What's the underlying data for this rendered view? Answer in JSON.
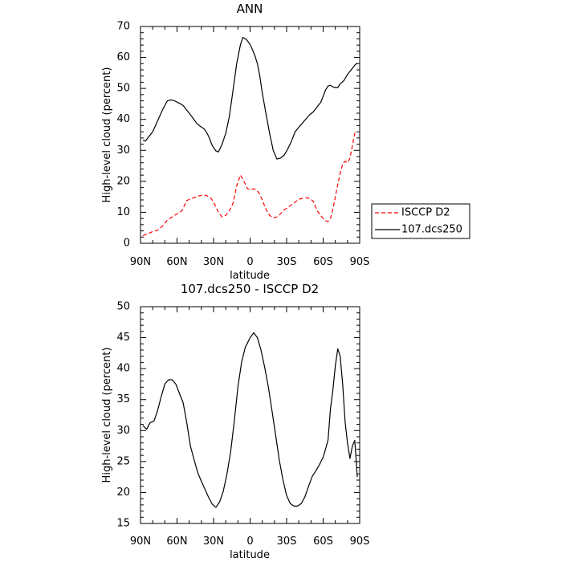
{
  "chart_data": [
    {
      "type": "line",
      "title": "ANN",
      "xlabel": "latitude",
      "ylabel": "High-level cloud (percent)",
      "xlim": [
        -90,
        90
      ],
      "ylim": [
        0,
        70
      ],
      "x_ticks": [
        -90,
        -60,
        -30,
        0,
        30,
        60,
        90
      ],
      "x_tick_labels": [
        "90N",
        "60N",
        "30N",
        "0",
        "30S",
        "60S",
        "90S"
      ],
      "y_ticks": [
        0,
        10,
        20,
        30,
        40,
        50,
        60,
        70
      ],
      "y_tick_labels": [
        "0",
        "10",
        "20",
        "30",
        "40",
        "50",
        "60",
        "70"
      ],
      "legend": "right",
      "series": [
        {
          "name": "ISCCP D2",
          "color": "#ff0000",
          "dash": "dashed",
          "x": [
            -88,
            -84,
            -80,
            -76,
            -72,
            -68,
            -64,
            -60,
            -56,
            -52,
            -48,
            -44,
            -40,
            -36,
            -32,
            -29,
            -26,
            -23,
            -20,
            -17,
            -14,
            -11,
            -8,
            -5,
            -2,
            1,
            4,
            7,
            10,
            13,
            16,
            19,
            22,
            25,
            28,
            31,
            34,
            37,
            40,
            43,
            46,
            49,
            52,
            55,
            58,
            61,
            64,
            66,
            68,
            70,
            72,
            74,
            76,
            78,
            80,
            82,
            84,
            86,
            88
          ],
          "values": [
            2.5,
            3,
            3.8,
            4.2,
            5.5,
            7.5,
            8.5,
            9.5,
            10.5,
            13.8,
            14.5,
            15,
            15.5,
            15.5,
            14.5,
            12.5,
            10,
            8.5,
            9,
            10.5,
            13,
            18.5,
            22,
            20,
            17.5,
            17.5,
            17.5,
            16.5,
            14,
            11,
            9,
            8.2,
            8.5,
            9.5,
            10.8,
            11.5,
            12.5,
            13.3,
            14.2,
            14.5,
            14.7,
            14.5,
            13.5,
            10.5,
            9,
            7.5,
            7,
            8,
            11,
            15,
            19,
            22.5,
            25.5,
            26.5,
            26,
            27.5,
            31.5,
            35.5,
            36
          ]
        },
        {
          "name": "107.dcs250",
          "color": "#000000",
          "dash": "solid",
          "x": [
            -88,
            -86,
            -83,
            -80,
            -76,
            -72,
            -68,
            -65,
            -62,
            -58,
            -55,
            -52,
            -48,
            -44,
            -41,
            -38,
            -36,
            -34,
            -31,
            -28,
            -26,
            -23,
            -20,
            -17,
            -14,
            -11,
            -8,
            -6,
            -3,
            0,
            2,
            4,
            6,
            8,
            10,
            13,
            16,
            19,
            22,
            25,
            28,
            31,
            34,
            37,
            40,
            43,
            46,
            49,
            52,
            55,
            58,
            60,
            62,
            64,
            66,
            68,
            70,
            72,
            74,
            77,
            80,
            83,
            86,
            88
          ],
          "values": [
            33.3,
            33,
            34.5,
            36,
            39.5,
            43,
            46,
            46.3,
            46,
            45.2,
            44.5,
            43,
            41,
            38.8,
            37.8,
            37,
            36,
            34.5,
            31.5,
            29.8,
            29.5,
            32,
            35.5,
            41,
            49.5,
            58,
            64,
            66.5,
            65.8,
            64.2,
            62.5,
            60.5,
            58,
            54,
            48.5,
            42,
            35.5,
            30,
            27.2,
            27.5,
            28.5,
            30.5,
            33,
            36,
            37.5,
            38.8,
            40.2,
            41.5,
            42.5,
            44,
            45.5,
            47.5,
            49.5,
            50.8,
            51,
            50.5,
            50.3,
            50.3,
            51.5,
            52.5,
            54.5,
            56,
            57.5,
            58.2
          ]
        }
      ]
    },
    {
      "type": "line",
      "title": "107.dcs250 - ISCCP D2",
      "xlabel": "latitude",
      "ylabel": "High-level cloud (percent)",
      "xlim": [
        -90,
        90
      ],
      "ylim": [
        15,
        50
      ],
      "x_ticks": [
        -90,
        -60,
        -30,
        0,
        30,
        60,
        90
      ],
      "x_tick_labels": [
        "90N",
        "60N",
        "30N",
        "0",
        "30S",
        "60S",
        "90S"
      ],
      "y_ticks": [
        15,
        20,
        25,
        30,
        35,
        40,
        45,
        50
      ],
      "y_tick_labels": [
        "15",
        "20",
        "25",
        "30",
        "35",
        "40",
        "45",
        "50"
      ],
      "legend": "none",
      "series": [
        {
          "color": "#000000",
          "dash": "solid",
          "x": [
            -88,
            -85,
            -82,
            -79,
            -76,
            -73,
            -70,
            -67,
            -64,
            -61,
            -58,
            -55,
            -52,
            -49,
            -46,
            -43,
            -40,
            -37,
            -34,
            -31,
            -28,
            -25,
            -22,
            -19,
            -16,
            -13,
            -10,
            -7,
            -4,
            -2,
            0,
            3,
            6,
            9,
            12,
            15,
            18,
            21,
            24,
            27,
            30,
            33,
            36,
            39,
            42,
            45,
            48,
            51,
            54,
            57,
            60,
            62,
            64,
            66,
            68,
            70,
            72,
            74,
            76,
            78,
            80,
            82,
            84,
            86,
            88
          ],
          "values": [
            30.8,
            30.2,
            31.3,
            31.5,
            33.2,
            35.5,
            37.5,
            38.2,
            38.2,
            37.5,
            36,
            34.5,
            31.3,
            27.5,
            25.3,
            23.2,
            21.8,
            20.5,
            19.2,
            18.1,
            17.6,
            18.5,
            20.2,
            23,
            26.5,
            31.5,
            37,
            41,
            43.4,
            44.2,
            45,
            45.8,
            45,
            43,
            40.2,
            37,
            33.2,
            29.2,
            25.2,
            22,
            19.5,
            18.2,
            17.8,
            17.8,
            18.2,
            19.3,
            21,
            22.6,
            23.5,
            24.5,
            25.7,
            27,
            28.5,
            33.5,
            36.5,
            40.5,
            43.2,
            42,
            37.5,
            31.5,
            28,
            25.5,
            27.5,
            28.4,
            22.5
          ]
        }
      ]
    }
  ]
}
